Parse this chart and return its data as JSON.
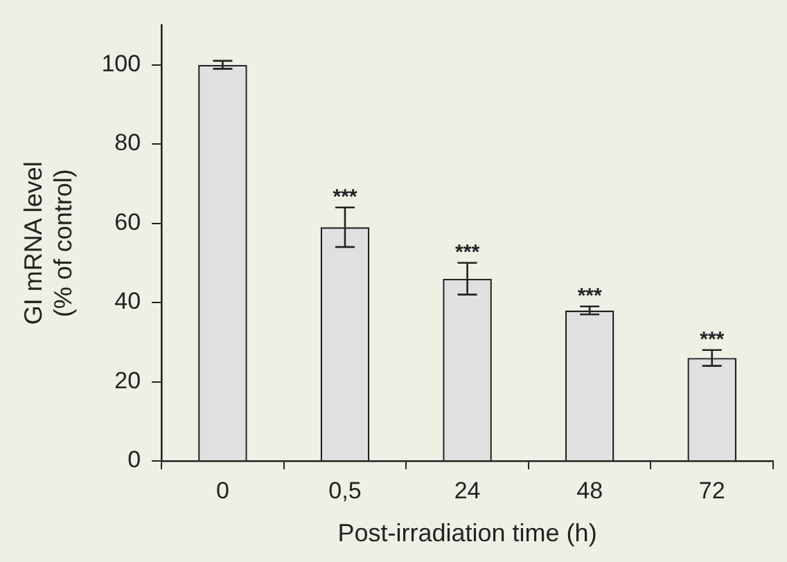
{
  "chart_data": {
    "type": "bar",
    "xlabel": "Post-irradiation time (h)",
    "ylabel": "GI mRNA level\n(% of control)",
    "categories": [
      "0",
      "0,5",
      "24",
      "48",
      "72"
    ],
    "values": [
      100,
      59,
      46,
      38,
      26
    ],
    "errors": [
      1,
      5,
      4,
      1,
      2
    ],
    "color": "#e0e0e0",
    "ylim": [
      0,
      110
    ],
    "yticks": [
      0,
      20,
      40,
      60,
      80,
      100
    ],
    "grid": false,
    "legend": false,
    "annotations": [
      {
        "text": "***",
        "x": "0,5",
        "y": 64
      },
      {
        "text": "***",
        "x": "24",
        "y": 50
      },
      {
        "text": "***",
        "x": "48",
        "y": 39
      },
      {
        "text": "***",
        "x": "72",
        "y": 28
      }
    ]
  }
}
